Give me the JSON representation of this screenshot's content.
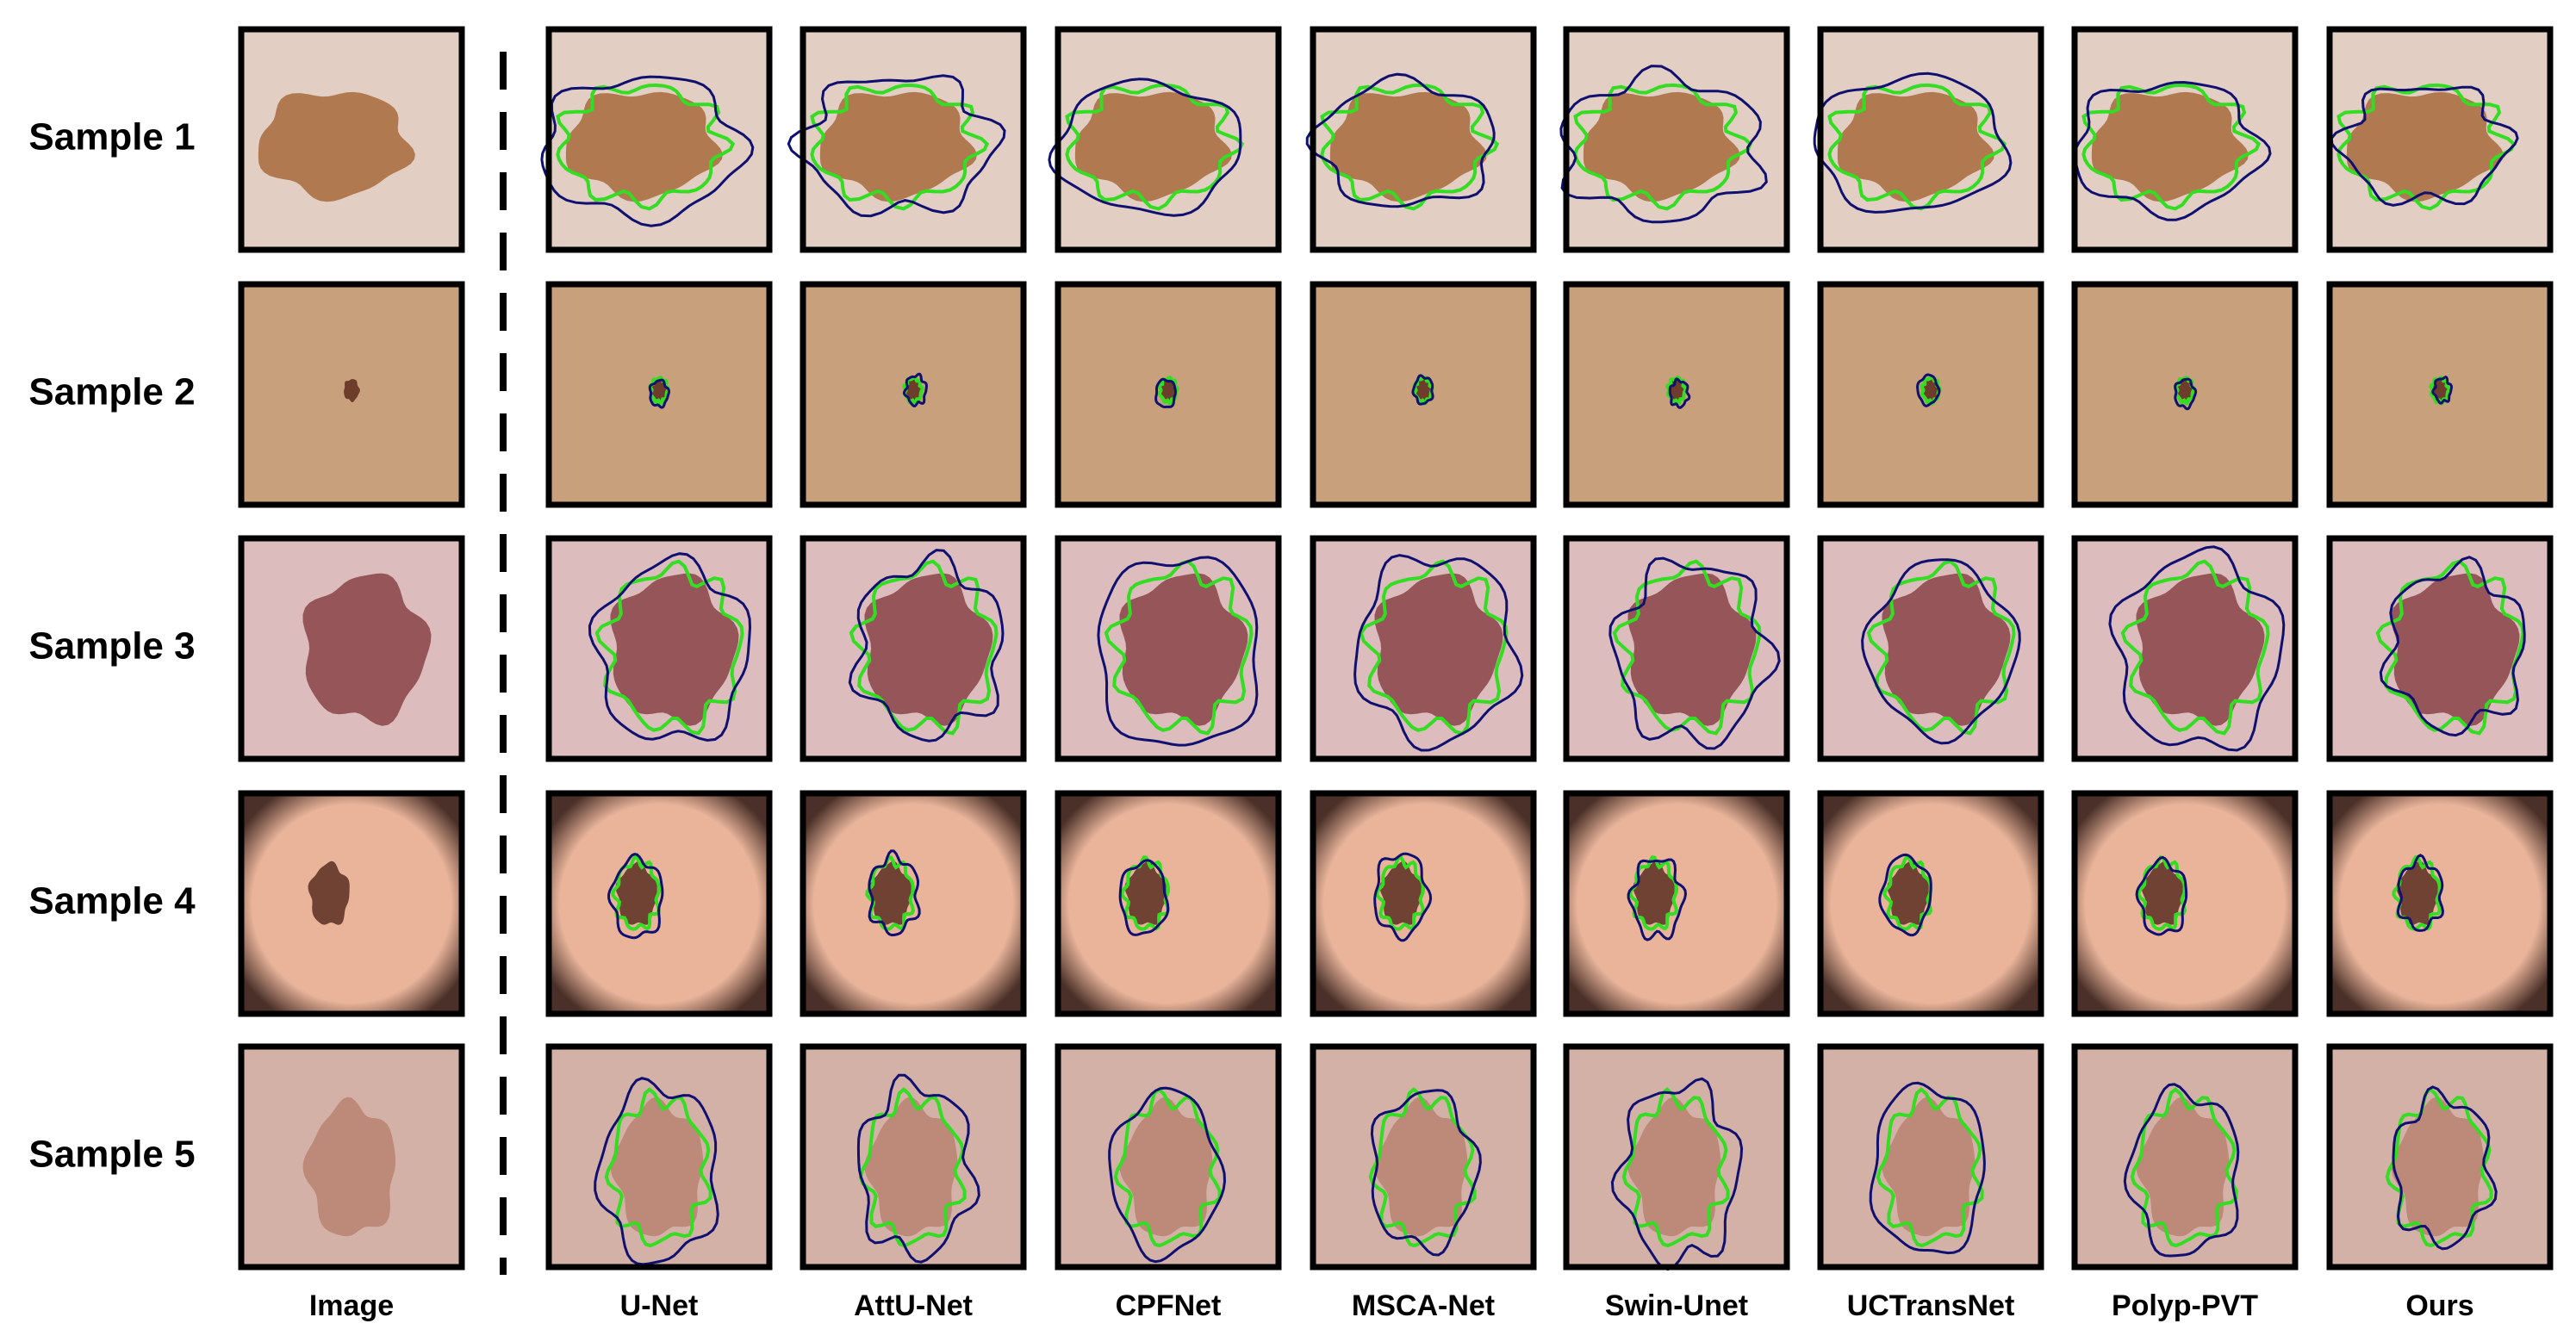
{
  "row_labels": [
    "Sample 1",
    "Sample 2",
    "Sample 3",
    "Sample 4",
    "Sample 5"
  ],
  "column_labels": [
    "Image",
    "U-Net",
    "AttU-Net",
    "CPFNet",
    "MSCA-Net",
    "Swin-Unet",
    "UCTransNet",
    "Polyp-PVT",
    "Ours"
  ]
}
